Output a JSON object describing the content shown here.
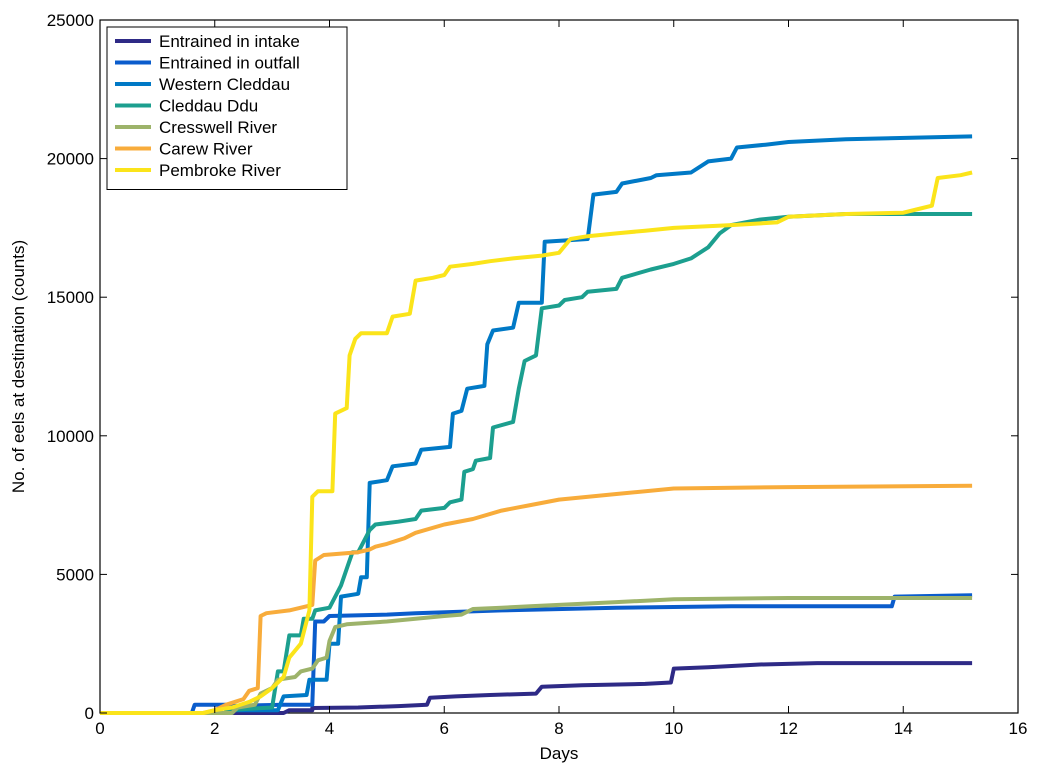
{
  "chart_data": {
    "type": "line",
    "title": "",
    "xlabel": "Days",
    "ylabel": "No. of eels at destination (counts)",
    "xlim": [
      0,
      16
    ],
    "ylim": [
      0,
      25000
    ],
    "xticks": [
      "0",
      "2",
      "4",
      "6",
      "8",
      "10",
      "12",
      "14",
      "16"
    ],
    "yticks": [
      "0",
      "5000",
      "10000",
      "15000",
      "20000",
      "25000"
    ],
    "grid": false,
    "legend_position": "top-left",
    "series": [
      {
        "name": "Entrained in intake",
        "color": "#2e2a86",
        "points": [
          [
            0,
            0
          ],
          [
            1.8,
            0
          ],
          [
            3.2,
            0
          ],
          [
            3.3,
            100
          ],
          [
            3.7,
            100
          ],
          [
            3.7,
            180
          ],
          [
            4.5,
            200
          ],
          [
            5.2,
            250
          ],
          [
            5.7,
            300
          ],
          [
            5.75,
            550
          ],
          [
            6.2,
            600
          ],
          [
            6.8,
            650
          ],
          [
            7.6,
            700
          ],
          [
            7.7,
            950
          ],
          [
            8.4,
            1000
          ],
          [
            9.5,
            1050
          ],
          [
            9.95,
            1100
          ],
          [
            10.0,
            1600
          ],
          [
            10.6,
            1650
          ],
          [
            11.5,
            1750
          ],
          [
            12.5,
            1800
          ],
          [
            15.2,
            1800
          ]
        ]
      },
      {
        "name": "Entrained in outfall",
        "color": "#0a5ccc",
        "points": [
          [
            0,
            0
          ],
          [
            1.6,
            0
          ],
          [
            1.65,
            300
          ],
          [
            2.2,
            300
          ],
          [
            2.2,
            250
          ],
          [
            3.2,
            300
          ],
          [
            3.7,
            300
          ],
          [
            3.75,
            3300
          ],
          [
            3.9,
            3300
          ],
          [
            4.0,
            3500
          ],
          [
            5.0,
            3550
          ],
          [
            5.5,
            3600
          ],
          [
            7.0,
            3700
          ],
          [
            9.0,
            3800
          ],
          [
            11.0,
            3850
          ],
          [
            13.8,
            3850
          ],
          [
            13.85,
            4200
          ],
          [
            15.2,
            4250
          ]
        ]
      },
      {
        "name": "Western Cleddau",
        "color": "#0079c6",
        "points": [
          [
            0,
            0
          ],
          [
            2.2,
            0
          ],
          [
            2.2,
            100
          ],
          [
            3.1,
            100
          ],
          [
            3.2,
            600
          ],
          [
            3.6,
            650
          ],
          [
            3.65,
            1200
          ],
          [
            3.95,
            1200
          ],
          [
            4.0,
            2500
          ],
          [
            4.15,
            2500
          ],
          [
            4.2,
            4200
          ],
          [
            4.5,
            4300
          ],
          [
            4.55,
            4900
          ],
          [
            4.65,
            4900
          ],
          [
            4.7,
            8300
          ],
          [
            5.0,
            8400
          ],
          [
            5.1,
            8900
          ],
          [
            5.5,
            9000
          ],
          [
            5.6,
            9500
          ],
          [
            6.1,
            9600
          ],
          [
            6.15,
            10800
          ],
          [
            6.3,
            10900
          ],
          [
            6.4,
            11700
          ],
          [
            6.7,
            11800
          ],
          [
            6.75,
            13300
          ],
          [
            6.85,
            13800
          ],
          [
            7.2,
            13900
          ],
          [
            7.3,
            14800
          ],
          [
            7.7,
            14800
          ],
          [
            7.75,
            17000
          ],
          [
            8.5,
            17100
          ],
          [
            8.6,
            18700
          ],
          [
            9.0,
            18800
          ],
          [
            9.1,
            19100
          ],
          [
            9.6,
            19300
          ],
          [
            9.7,
            19400
          ],
          [
            10.3,
            19500
          ],
          [
            10.6,
            19900
          ],
          [
            11.0,
            20000
          ],
          [
            11.1,
            20400
          ],
          [
            11.6,
            20500
          ],
          [
            12.0,
            20600
          ],
          [
            13.0,
            20700
          ],
          [
            15.2,
            20800
          ]
        ]
      },
      {
        "name": "Cleddau Ddu",
        "color": "#1c9f8f",
        "points": [
          [
            0,
            0
          ],
          [
            2.2,
            0
          ],
          [
            2.2,
            100
          ],
          [
            2.6,
            150
          ],
          [
            3.0,
            200
          ],
          [
            3.1,
            1500
          ],
          [
            3.2,
            1500
          ],
          [
            3.3,
            2800
          ],
          [
            3.5,
            2800
          ],
          [
            3.55,
            3400
          ],
          [
            3.7,
            3400
          ],
          [
            3.75,
            3700
          ],
          [
            4.0,
            3800
          ],
          [
            4.2,
            4600
          ],
          [
            4.3,
            5200
          ],
          [
            4.4,
            5800
          ],
          [
            4.5,
            5800
          ],
          [
            4.7,
            6600
          ],
          [
            4.8,
            6800
          ],
          [
            5.2,
            6900
          ],
          [
            5.5,
            7000
          ],
          [
            5.6,
            7300
          ],
          [
            6.0,
            7400
          ],
          [
            6.1,
            7600
          ],
          [
            6.3,
            7700
          ],
          [
            6.35,
            8700
          ],
          [
            6.5,
            8800
          ],
          [
            6.55,
            9100
          ],
          [
            6.8,
            9200
          ],
          [
            6.85,
            10300
          ],
          [
            7.2,
            10500
          ],
          [
            7.3,
            11700
          ],
          [
            7.4,
            12700
          ],
          [
            7.6,
            12900
          ],
          [
            7.7,
            14600
          ],
          [
            8.0,
            14700
          ],
          [
            8.1,
            14900
          ],
          [
            8.4,
            15000
          ],
          [
            8.5,
            15200
          ],
          [
            9.0,
            15300
          ],
          [
            9.1,
            15700
          ],
          [
            9.6,
            16000
          ],
          [
            10.0,
            16200
          ],
          [
            10.3,
            16400
          ],
          [
            10.6,
            16800
          ],
          [
            10.8,
            17300
          ],
          [
            11.0,
            17600
          ],
          [
            11.5,
            17800
          ],
          [
            12.0,
            17900
          ],
          [
            13.0,
            18000
          ],
          [
            15.2,
            18000
          ]
        ]
      },
      {
        "name": "Cresswell River",
        "color": "#9db36a",
        "points": [
          [
            0,
            0
          ],
          [
            2.3,
            0
          ],
          [
            2.4,
            200
          ],
          [
            2.7,
            300
          ],
          [
            2.8,
            700
          ],
          [
            3.0,
            900
          ],
          [
            3.1,
            1200
          ],
          [
            3.4,
            1300
          ],
          [
            3.5,
            1500
          ],
          [
            3.7,
            1600
          ],
          [
            3.8,
            1900
          ],
          [
            3.95,
            2000
          ],
          [
            4.0,
            2600
          ],
          [
            4.1,
            3100
          ],
          [
            4.3,
            3200
          ],
          [
            5.0,
            3300
          ],
          [
            5.5,
            3400
          ],
          [
            6.0,
            3500
          ],
          [
            6.3,
            3550
          ],
          [
            6.5,
            3750
          ],
          [
            7.0,
            3800
          ],
          [
            7.5,
            3850
          ],
          [
            8.0,
            3900
          ],
          [
            8.5,
            3950
          ],
          [
            9.0,
            4000
          ],
          [
            9.5,
            4050
          ],
          [
            10.0,
            4100
          ],
          [
            12.0,
            4150
          ],
          [
            15.2,
            4150
          ]
        ]
      },
      {
        "name": "Carew River",
        "color": "#f8ac3b",
        "points": [
          [
            0,
            0
          ],
          [
            1.8,
            0
          ],
          [
            2.0,
            100
          ],
          [
            2.2,
            300
          ],
          [
            2.5,
            500
          ],
          [
            2.6,
            800
          ],
          [
            2.75,
            900
          ],
          [
            2.8,
            3500
          ],
          [
            2.9,
            3600
          ],
          [
            3.3,
            3700
          ],
          [
            3.5,
            3800
          ],
          [
            3.7,
            3900
          ],
          [
            3.75,
            5500
          ],
          [
            3.9,
            5700
          ],
          [
            4.5,
            5800
          ],
          [
            4.7,
            5900
          ],
          [
            4.8,
            6000
          ],
          [
            5.0,
            6100
          ],
          [
            5.3,
            6300
          ],
          [
            5.5,
            6500
          ],
          [
            6.0,
            6800
          ],
          [
            6.5,
            7000
          ],
          [
            7.0,
            7300
          ],
          [
            7.5,
            7500
          ],
          [
            8.0,
            7700
          ],
          [
            9.0,
            7900
          ],
          [
            10.0,
            8100
          ],
          [
            12.0,
            8150
          ],
          [
            15.2,
            8200
          ]
        ]
      },
      {
        "name": "Pembroke River",
        "color": "#fbe41a",
        "points": [
          [
            0,
            0
          ],
          [
            1.8,
            0
          ],
          [
            2.0,
            100
          ],
          [
            2.3,
            200
          ],
          [
            2.6,
            400
          ],
          [
            2.8,
            600
          ],
          [
            3.0,
            900
          ],
          [
            3.2,
            1300
          ],
          [
            3.3,
            2000
          ],
          [
            3.5,
            2500
          ],
          [
            3.65,
            3700
          ],
          [
            3.7,
            7800
          ],
          [
            3.8,
            8000
          ],
          [
            4.05,
            8000
          ],
          [
            4.1,
            10800
          ],
          [
            4.3,
            11000
          ],
          [
            4.35,
            12900
          ],
          [
            4.45,
            13500
          ],
          [
            4.55,
            13700
          ],
          [
            5.0,
            13700
          ],
          [
            5.1,
            14300
          ],
          [
            5.4,
            14400
          ],
          [
            5.5,
            15600
          ],
          [
            5.8,
            15700
          ],
          [
            6.0,
            15800
          ],
          [
            6.1,
            16100
          ],
          [
            6.5,
            16200
          ],
          [
            6.8,
            16300
          ],
          [
            7.2,
            16400
          ],
          [
            7.7,
            16500
          ],
          [
            8.0,
            16600
          ],
          [
            8.2,
            17100
          ],
          [
            8.5,
            17200
          ],
          [
            9.0,
            17300
          ],
          [
            9.5,
            17400
          ],
          [
            10.0,
            17500
          ],
          [
            10.5,
            17550
          ],
          [
            11.0,
            17600
          ],
          [
            11.8,
            17700
          ],
          [
            12.0,
            17900
          ],
          [
            13.0,
            18000
          ],
          [
            14.0,
            18050
          ],
          [
            14.3,
            18200
          ],
          [
            14.5,
            18300
          ],
          [
            14.6,
            19300
          ],
          [
            15.0,
            19400
          ],
          [
            15.2,
            19500
          ]
        ]
      }
    ]
  }
}
